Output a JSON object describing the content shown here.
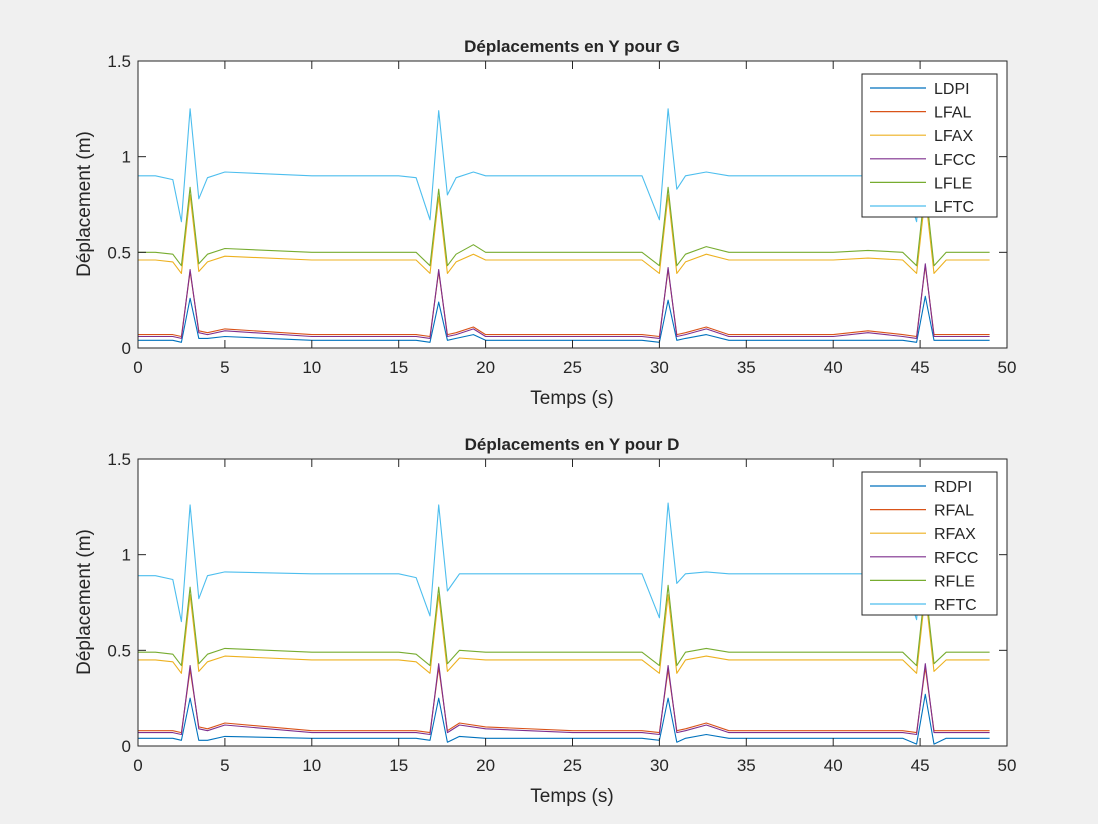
{
  "chart_data": [
    {
      "type": "line",
      "title": "Déplacements en Y pour G",
      "xlabel": "Temps (s)",
      "ylabel": "Déplacement (m)",
      "xlim": [
        0,
        50
      ],
      "ylim": [
        0,
        1.5
      ],
      "xticks": [
        0,
        5,
        10,
        15,
        20,
        25,
        30,
        35,
        40,
        45,
        50
      ],
      "yticks": [
        0,
        0.5,
        1,
        1.5
      ],
      "grid": false,
      "legend_position": "top-right",
      "x": [
        0,
        1,
        2,
        2.5,
        3,
        3.5,
        4,
        5,
        10,
        15,
        16,
        16.8,
        17.3,
        17.8,
        18.3,
        19.3,
        20,
        25,
        29,
        30,
        30.5,
        31,
        31.5,
        32.7,
        34,
        40,
        42,
        44,
        44.8,
        45.3,
        45.8,
        46.5,
        49
      ],
      "series": [
        {
          "name": "LDPI",
          "color": "#0072bd",
          "values": [
            0.04,
            0.04,
            0.04,
            0.03,
            0.26,
            0.05,
            0.05,
            0.06,
            0.04,
            0.04,
            0.04,
            0.03,
            0.24,
            0.04,
            0.05,
            0.07,
            0.04,
            0.04,
            0.04,
            0.03,
            0.25,
            0.04,
            0.05,
            0.07,
            0.04,
            0.04,
            0.04,
            0.04,
            0.03,
            0.27,
            0.04,
            0.04,
            0.04
          ]
        },
        {
          "name": "LFAL",
          "color": "#d95319",
          "values": [
            0.07,
            0.07,
            0.07,
            0.06,
            0.4,
            0.09,
            0.08,
            0.1,
            0.07,
            0.07,
            0.07,
            0.06,
            0.4,
            0.07,
            0.08,
            0.11,
            0.07,
            0.07,
            0.07,
            0.06,
            0.41,
            0.07,
            0.08,
            0.11,
            0.07,
            0.07,
            0.09,
            0.07,
            0.06,
            0.43,
            0.07,
            0.07,
            0.07
          ]
        },
        {
          "name": "LFAX",
          "color": "#edb120",
          "values": [
            0.46,
            0.46,
            0.45,
            0.39,
            0.8,
            0.4,
            0.45,
            0.48,
            0.46,
            0.46,
            0.46,
            0.39,
            0.79,
            0.39,
            0.45,
            0.49,
            0.46,
            0.46,
            0.46,
            0.39,
            0.8,
            0.39,
            0.45,
            0.49,
            0.46,
            0.46,
            0.47,
            0.46,
            0.39,
            0.8,
            0.39,
            0.46,
            0.46
          ]
        },
        {
          "name": "LFCC",
          "color": "#7e2f8e",
          "values": [
            0.06,
            0.06,
            0.06,
            0.05,
            0.41,
            0.08,
            0.07,
            0.09,
            0.06,
            0.06,
            0.06,
            0.05,
            0.41,
            0.06,
            0.07,
            0.1,
            0.06,
            0.06,
            0.06,
            0.05,
            0.42,
            0.06,
            0.07,
            0.1,
            0.06,
            0.06,
            0.08,
            0.06,
            0.05,
            0.44,
            0.06,
            0.06,
            0.06
          ]
        },
        {
          "name": "LFLE",
          "color": "#77ac30",
          "values": [
            0.5,
            0.5,
            0.49,
            0.43,
            0.84,
            0.44,
            0.49,
            0.52,
            0.5,
            0.5,
            0.5,
            0.43,
            0.83,
            0.43,
            0.49,
            0.54,
            0.5,
            0.5,
            0.5,
            0.43,
            0.84,
            0.43,
            0.49,
            0.53,
            0.5,
            0.5,
            0.51,
            0.5,
            0.43,
            0.85,
            0.43,
            0.5,
            0.5
          ]
        },
        {
          "name": "LFTC",
          "color": "#4dbeee",
          "values": [
            0.9,
            0.9,
            0.88,
            0.66,
            1.25,
            0.78,
            0.89,
            0.92,
            0.9,
            0.9,
            0.89,
            0.67,
            1.24,
            0.8,
            0.89,
            0.92,
            0.9,
            0.9,
            0.9,
            0.67,
            1.25,
            0.83,
            0.9,
            0.92,
            0.9,
            0.9,
            0.9,
            0.89,
            0.66,
            1.25,
            0.8,
            0.9,
            0.9
          ]
        }
      ]
    },
    {
      "type": "line",
      "title": "Déplacements en Y pour D",
      "xlabel": "Temps (s)",
      "ylabel": "Déplacement (m)",
      "xlim": [
        0,
        50
      ],
      "ylim": [
        0,
        1.5
      ],
      "xticks": [
        0,
        5,
        10,
        15,
        20,
        25,
        30,
        35,
        40,
        45,
        50
      ],
      "yticks": [
        0,
        0.5,
        1,
        1.5
      ],
      "grid": false,
      "legend_position": "top-right",
      "x": [
        0,
        1,
        2,
        2.5,
        3,
        3.5,
        4,
        5,
        10,
        15,
        16,
        16.8,
        17.3,
        17.8,
        18.5,
        20,
        25,
        29,
        30,
        30.5,
        31,
        31.5,
        32.7,
        34,
        40,
        42,
        44,
        44.8,
        45.3,
        45.8,
        46.5,
        49
      ],
      "series": [
        {
          "name": "RDPI",
          "color": "#0072bd",
          "values": [
            0.04,
            0.04,
            0.04,
            0.03,
            0.25,
            0.03,
            0.03,
            0.05,
            0.04,
            0.04,
            0.04,
            0.03,
            0.25,
            0.02,
            0.05,
            0.04,
            0.04,
            0.04,
            0.03,
            0.25,
            0.02,
            0.04,
            0.06,
            0.04,
            0.04,
            0.04,
            0.04,
            0.01,
            0.27,
            0.01,
            0.04,
            0.04
          ]
        },
        {
          "name": "RFAL",
          "color": "#d95319",
          "values": [
            0.08,
            0.08,
            0.08,
            0.07,
            0.4,
            0.1,
            0.09,
            0.12,
            0.08,
            0.08,
            0.08,
            0.07,
            0.41,
            0.08,
            0.12,
            0.1,
            0.08,
            0.08,
            0.07,
            0.4,
            0.08,
            0.09,
            0.12,
            0.08,
            0.08,
            0.08,
            0.08,
            0.07,
            0.41,
            0.08,
            0.08,
            0.08
          ]
        },
        {
          "name": "RFAX",
          "color": "#edb120",
          "values": [
            0.45,
            0.45,
            0.44,
            0.38,
            0.79,
            0.39,
            0.44,
            0.47,
            0.45,
            0.45,
            0.44,
            0.38,
            0.79,
            0.39,
            0.46,
            0.45,
            0.45,
            0.45,
            0.38,
            0.79,
            0.38,
            0.45,
            0.47,
            0.45,
            0.45,
            0.45,
            0.45,
            0.38,
            0.8,
            0.39,
            0.45,
            0.45
          ]
        },
        {
          "name": "RFCC",
          "color": "#7e2f8e",
          "values": [
            0.07,
            0.07,
            0.07,
            0.06,
            0.42,
            0.09,
            0.08,
            0.11,
            0.07,
            0.07,
            0.07,
            0.06,
            0.43,
            0.07,
            0.11,
            0.09,
            0.07,
            0.07,
            0.06,
            0.42,
            0.07,
            0.08,
            0.11,
            0.07,
            0.07,
            0.07,
            0.07,
            0.06,
            0.43,
            0.07,
            0.07,
            0.07
          ]
        },
        {
          "name": "RFLE",
          "color": "#77ac30",
          "values": [
            0.49,
            0.49,
            0.48,
            0.42,
            0.83,
            0.43,
            0.48,
            0.51,
            0.49,
            0.49,
            0.48,
            0.42,
            0.83,
            0.43,
            0.5,
            0.49,
            0.49,
            0.49,
            0.42,
            0.84,
            0.42,
            0.49,
            0.51,
            0.49,
            0.49,
            0.49,
            0.49,
            0.42,
            0.84,
            0.43,
            0.49,
            0.49
          ]
        },
        {
          "name": "RFTC",
          "color": "#4dbeee",
          "values": [
            0.89,
            0.89,
            0.87,
            0.65,
            1.26,
            0.77,
            0.89,
            0.91,
            0.9,
            0.9,
            0.88,
            0.68,
            1.26,
            0.81,
            0.9,
            0.9,
            0.9,
            0.9,
            0.67,
            1.27,
            0.85,
            0.9,
            0.91,
            0.9,
            0.9,
            0.9,
            0.88,
            0.66,
            1.25,
            0.8,
            0.9,
            0.9
          ]
        }
      ]
    }
  ]
}
